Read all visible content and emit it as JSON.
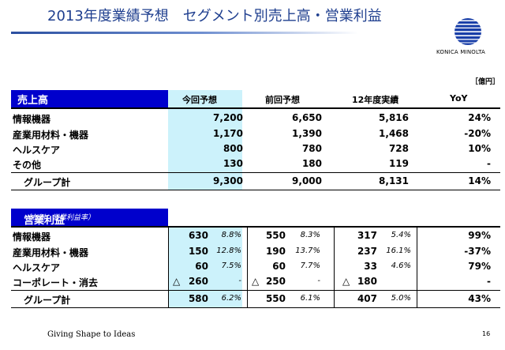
{
  "title": "2013年度業績予想　セグメント別売上高・営業利益",
  "logo_text": "KONICA MINOLTA",
  "unit": "［億円］",
  "columns": {
    "current": "今回予想",
    "previous": "前回予想",
    "actual": "12年度実績",
    "yoy": "YoY"
  },
  "sales": {
    "header": "売上高",
    "rows": [
      {
        "label": "情報機器",
        "current": "7,200",
        "previous": "6,650",
        "actual": "5,816",
        "yoy": "24%"
      },
      {
        "label": "産業用材料・機器",
        "current": "1,170",
        "previous": "1,390",
        "actual": "1,468",
        "yoy": "-20%"
      },
      {
        "label": "ヘルスケア",
        "current": "800",
        "previous": "780",
        "actual": "728",
        "yoy": "10%"
      },
      {
        "label": "その他",
        "current": "130",
        "previous": "180",
        "actual": "119",
        "yoy": "-"
      },
      {
        "label": "グループ計",
        "current": "9,300",
        "previous": "9,000",
        "actual": "8,131",
        "yoy": "14%"
      }
    ]
  },
  "op": {
    "header": "営業利益",
    "sub": "（右側：営業利益率）",
    "triangle": "△",
    "rows": [
      {
        "label": "情報機器",
        "current": "630",
        "current_pct": "8.8%",
        "previous": "550",
        "previous_pct": "8.3%",
        "actual": "317",
        "actual_pct": "5.4%",
        "yoy": "99%"
      },
      {
        "label": "産業用材料・機器",
        "current": "150",
        "current_pct": "12.8%",
        "previous": "190",
        "previous_pct": "13.7%",
        "actual": "237",
        "actual_pct": "16.1%",
        "yoy": "-37%"
      },
      {
        "label": "ヘルスケア",
        "current": "60",
        "current_pct": "7.5%",
        "previous": "60",
        "previous_pct": "7.7%",
        "actual": "33",
        "actual_pct": "4.6%",
        "yoy": "79%"
      },
      {
        "label": "コーポレート・消去",
        "current": "260",
        "current_pct": "-",
        "previous": "250",
        "previous_pct": "-",
        "actual": "180",
        "actual_pct": "",
        "yoy": "-"
      },
      {
        "label": "グループ計",
        "current": "580",
        "current_pct": "6.2%",
        "previous": "550",
        "previous_pct": "6.1%",
        "actual": "407",
        "actual_pct": "5.0%",
        "yoy": "43%"
      }
    ]
  },
  "footer": "Giving Shape to Ideas",
  "page_number": "16",
  "colors": {
    "title": "#1f3f8f",
    "header_box": "#0000cc",
    "highlight": "#ccf2fb"
  }
}
